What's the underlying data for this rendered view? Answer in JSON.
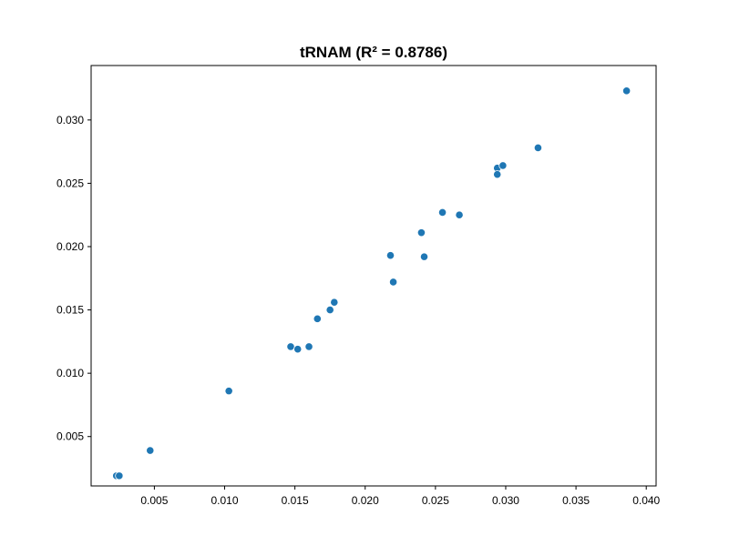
{
  "chart_data": {
    "type": "scatter",
    "title": "tRNAM (R² = 0.8786)",
    "xlabel": "",
    "ylabel": "",
    "xlim": [
      0.0005,
      0.0407
    ],
    "ylim": [
      0.0011,
      0.0343
    ],
    "xticks": [
      0.005,
      0.01,
      0.015,
      0.02,
      0.025,
      0.03,
      0.035,
      0.04
    ],
    "xtick_labels": [
      "0.005",
      "0.010",
      "0.015",
      "0.020",
      "0.025",
      "0.030",
      "0.035",
      "0.040"
    ],
    "yticks": [
      0.005,
      0.01,
      0.015,
      0.02,
      0.025,
      0.03
    ],
    "ytick_labels": [
      "0.005",
      "0.010",
      "0.015",
      "0.020",
      "0.025",
      "0.030"
    ],
    "grid": false,
    "legend": false,
    "marker_color": "#1f77b4",
    "points": [
      {
        "x": 0.0023,
        "y": 0.0019
      },
      {
        "x": 0.0025,
        "y": 0.0019
      },
      {
        "x": 0.0047,
        "y": 0.0039
      },
      {
        "x": 0.0103,
        "y": 0.0086
      },
      {
        "x": 0.0147,
        "y": 0.0121
      },
      {
        "x": 0.0152,
        "y": 0.0119
      },
      {
        "x": 0.016,
        "y": 0.0121
      },
      {
        "x": 0.0166,
        "y": 0.0143
      },
      {
        "x": 0.0175,
        "y": 0.015
      },
      {
        "x": 0.0178,
        "y": 0.0156
      },
      {
        "x": 0.0218,
        "y": 0.0193
      },
      {
        "x": 0.022,
        "y": 0.0172
      },
      {
        "x": 0.024,
        "y": 0.0211
      },
      {
        "x": 0.0242,
        "y": 0.0192
      },
      {
        "x": 0.0255,
        "y": 0.0227
      },
      {
        "x": 0.0267,
        "y": 0.0225
      },
      {
        "x": 0.0294,
        "y": 0.0262
      },
      {
        "x": 0.0294,
        "y": 0.0257
      },
      {
        "x": 0.0298,
        "y": 0.0264
      },
      {
        "x": 0.0323,
        "y": 0.0278
      },
      {
        "x": 0.0386,
        "y": 0.0323
      }
    ]
  }
}
